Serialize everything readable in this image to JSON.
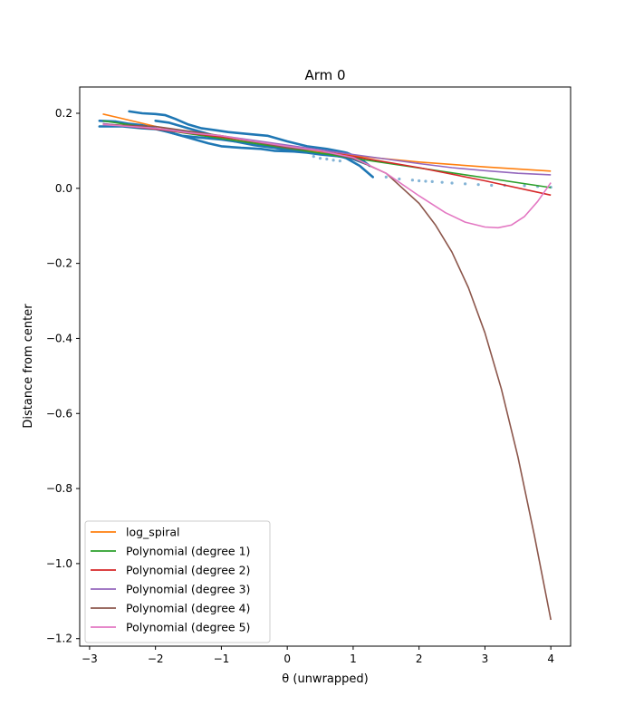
{
  "chart_data": {
    "type": "line",
    "title": "Arm 0",
    "xlabel": "θ (unwrapped)",
    "ylabel": "Distance from center",
    "xlim": [
      -3.15,
      4.3
    ],
    "ylim": [
      -1.22,
      0.27
    ],
    "xticks": [
      -3,
      -2,
      -1,
      0,
      1,
      2,
      3,
      4
    ],
    "yticks": [
      0.2,
      0.0,
      -0.2,
      -0.4,
      -0.6,
      -0.8,
      -1.0,
      -1.2
    ],
    "xtick_labels": [
      "−3",
      "−2",
      "−1",
      "0",
      "1",
      "2",
      "3",
      "4"
    ],
    "ytick_labels": [
      "0.2",
      "0.0",
      "−0.2",
      "−0.4",
      "−0.6",
      "−0.8",
      "−1.0",
      "−1.2"
    ],
    "legend_position": "lower-left",
    "data_points": {
      "color": "#1f77b4",
      "traces": [
        {
          "x": [
            -2.85,
            -2.5,
            -2.2,
            -2.0,
            -1.8,
            -1.6,
            -1.3,
            -1.0,
            -0.8,
            -0.5,
            -0.3,
            0.0,
            0.2,
            0.5,
            0.7,
            0.9,
            1.1,
            1.2,
            1.3
          ],
          "y": [
            0.165,
            0.165,
            0.16,
            0.158,
            0.15,
            0.14,
            0.135,
            0.13,
            0.125,
            0.122,
            0.118,
            0.112,
            0.108,
            0.1,
            0.092,
            0.08,
            0.06,
            0.045,
            0.03
          ]
        },
        {
          "x": [
            -2.85,
            -2.6,
            -2.4,
            -2.2,
            -2.0,
            -1.8,
            -1.5,
            -1.2,
            -1.0,
            -0.7,
            -0.4,
            -0.2,
            0.1,
            0.3,
            0.5,
            0.8,
            1.0
          ],
          "y": [
            0.18,
            0.178,
            0.172,
            0.168,
            0.16,
            0.15,
            0.135,
            0.12,
            0.112,
            0.108,
            0.105,
            0.1,
            0.098,
            0.095,
            0.09,
            0.085,
            0.08
          ]
        },
        {
          "x": [
            -2.4,
            -2.2,
            -2.0,
            -1.85,
            -1.7,
            -1.5,
            -1.3,
            -1.1,
            -0.9,
            -0.6,
            -0.3,
            0.0,
            0.3,
            0.6,
            0.9,
            1.1,
            1.25
          ],
          "y": [
            0.205,
            0.2,
            0.198,
            0.195,
            0.185,
            0.17,
            0.16,
            0.155,
            0.15,
            0.145,
            0.14,
            0.125,
            0.112,
            0.105,
            0.095,
            0.08,
            0.06
          ]
        },
        {
          "x": [
            -2.0,
            -1.8,
            -1.5,
            -1.2,
            -1.0,
            -0.8,
            -0.5,
            -0.2,
            0.1,
            0.4,
            0.7,
            1.0,
            1.2
          ],
          "y": [
            0.18,
            0.175,
            0.16,
            0.145,
            0.135,
            0.125,
            0.115,
            0.108,
            0.1,
            0.095,
            0.088,
            0.078,
            0.065
          ]
        }
      ],
      "faint_points": {
        "x": [
          0.4,
          0.5,
          0.6,
          0.7,
          0.8,
          1.5,
          1.7,
          1.9,
          2.0,
          2.1,
          2.2,
          2.35,
          2.5,
          2.7,
          2.9,
          3.1,
          3.3,
          3.6,
          3.8,
          4.0
        ],
        "y": [
          0.085,
          0.08,
          0.078,
          0.075,
          0.073,
          0.03,
          0.025,
          0.022,
          0.02,
          0.019,
          0.018,
          0.016,
          0.014,
          0.012,
          0.01,
          0.008,
          0.008,
          0.007,
          0.005,
          0.003
        ]
      }
    },
    "series": [
      {
        "name": "log_spiral",
        "color": "#ff7f0e",
        "x": [
          -2.8,
          -2.0,
          -1.0,
          0.0,
          1.0,
          2.0,
          3.0,
          4.0
        ],
        "y": [
          0.198,
          0.165,
          0.133,
          0.108,
          0.087,
          0.07,
          0.057,
          0.046
        ]
      },
      {
        "name": "Polynomial (degree 1)",
        "color": "#2ca02c",
        "x": [
          -2.8,
          4.0
        ],
        "y": [
          0.18,
          0.002
        ]
      },
      {
        "name": "Polynomial (degree 2)",
        "color": "#d62728",
        "x": [
          -2.8,
          -2.0,
          -1.0,
          0.0,
          1.0,
          2.0,
          3.0,
          4.0
        ],
        "y": [
          0.172,
          0.158,
          0.137,
          0.113,
          0.085,
          0.055,
          0.02,
          -0.018
        ]
      },
      {
        "name": "Polynomial (degree 3)",
        "color": "#9467bd",
        "x": [
          -2.8,
          -2.0,
          -1.0,
          0.0,
          1.0,
          1.5,
          2.0,
          2.5,
          3.0,
          3.5,
          4.0
        ],
        "y": [
          0.172,
          0.16,
          0.14,
          0.115,
          0.09,
          0.078,
          0.066,
          0.055,
          0.047,
          0.04,
          0.036
        ]
      },
      {
        "name": "Polynomial (degree 4)",
        "color": "#8c564b",
        "x": [
          -2.8,
          -2.0,
          -1.0,
          0.0,
          0.5,
          1.0,
          1.5,
          2.0,
          2.25,
          2.5,
          2.75,
          3.0,
          3.25,
          3.5,
          3.75,
          4.0
        ],
        "y": [
          0.17,
          0.165,
          0.14,
          0.108,
          0.1,
          0.08,
          0.04,
          -0.04,
          -0.098,
          -0.17,
          -0.265,
          -0.385,
          -0.535,
          -0.715,
          -0.925,
          -1.15
        ]
      },
      {
        "name": "Polynomial (degree 5)",
        "color": "#e377c2",
        "x": [
          -2.8,
          -2.0,
          -1.5,
          -1.0,
          -0.5,
          0.0,
          0.5,
          1.0,
          1.5,
          2.0,
          2.4,
          2.7,
          3.0,
          3.2,
          3.4,
          3.6,
          3.8,
          4.0
        ],
        "y": [
          0.17,
          0.16,
          0.148,
          0.14,
          0.125,
          0.112,
          0.1,
          0.082,
          0.04,
          -0.02,
          -0.065,
          -0.09,
          -0.103,
          -0.105,
          -0.098,
          -0.075,
          -0.035,
          0.015
        ]
      }
    ]
  }
}
